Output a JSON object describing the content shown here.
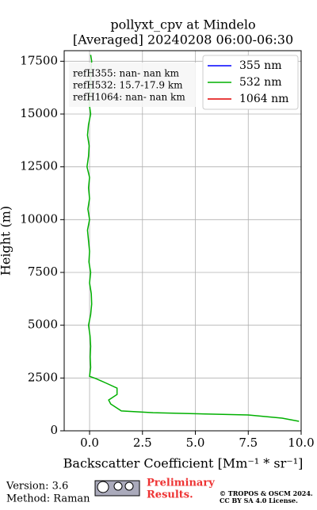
{
  "chart_data": {
    "type": "line",
    "title": [
      "pollyxt_cpv at Mindelo",
      "[Averaged] 20240208 06:00-06:30"
    ],
    "x_label": "Backscatter Coefficient [Mm⁻¹ * sr⁻¹]",
    "y_label": "Height (m)",
    "xlim": [
      -1.2,
      10
    ],
    "ylim": [
      0,
      18000
    ],
    "xticks": [
      {
        "value": 0,
        "label": "0.0"
      },
      2.5,
      {
        "value": 5,
        "label": "5.0"
      },
      7.5,
      {
        "value": 10,
        "label": "10.0"
      }
    ],
    "yticks": [
      0,
      2500,
      5000,
      7500,
      10000,
      12500,
      15000,
      17500
    ],
    "grid": true,
    "legend": "upper right",
    "annotations": [
      "refH355:  nan- nan km",
      "refH532: 15.7-17.9 km",
      "refH1064:  nan- nan km"
    ],
    "y": [
      450,
      600,
      750,
      860,
      940,
      1270,
      1460,
      1720,
      2020,
      2250,
      2470,
      2580,
      3000,
      3500,
      4000,
      4500,
      5000,
      5500,
      6000,
      6500,
      7000,
      7500,
      8000,
      8500,
      9000,
      9500,
      10000,
      10500,
      11000,
      11500,
      12000,
      12500,
      13000,
      13500,
      14000,
      14500,
      15000,
      15500,
      16000,
      16500,
      17000,
      17500,
      17800
    ],
    "series": [
      {
        "name": "355 nm",
        "color": "#0000ff"
      },
      {
        "name": "532 nm",
        "color": "#00b000",
        "values": [
          9.9,
          9.1,
          7.5,
          3.0,
          1.5,
          1.0,
          0.9,
          1.3,
          1.3,
          0.8,
          0.3,
          0.0,
          0.05,
          0.03,
          0.05,
          0.02,
          -0.05,
          0.05,
          0.1,
          0.08,
          0.0,
          0.05,
          -0.03,
          0.0,
          -0.05,
          -0.1,
          0.0,
          -0.08,
          0.0,
          -0.05,
          0.0,
          -0.12,
          -0.05,
          -0.02,
          -0.1,
          -0.05,
          0.05,
          -0.02,
          0.02,
          0.05,
          0.05,
          0.1,
          0.05
        ]
      },
      {
        "name": "1064 nm",
        "color": "#e00000"
      }
    ]
  },
  "footer": {
    "version": "Version: 3.6",
    "method": "Method: Raman",
    "preliminary": [
      "Preliminary",
      "Results."
    ],
    "copyright": [
      "© TROPOS & OSCM 2024.",
      "CC BY SA 4.0 License."
    ]
  }
}
